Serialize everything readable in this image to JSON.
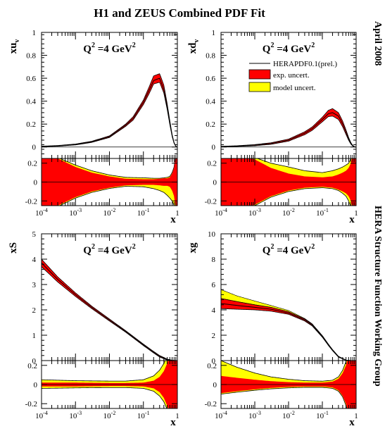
{
  "title": "H1 and ZEUS Combined PDF Fit",
  "side_label_top": "April 2008",
  "side_label_bottom": "HERA Structure Function Working Group",
  "legend": {
    "central": "HERAPDF0.1(prel.)",
    "exp": "exp. uncert.",
    "model": "model uncert."
  },
  "colors": {
    "exp": "#ff0000",
    "model": "#ffff00",
    "line": "#000000"
  },
  "chart_data": [
    {
      "type": "area",
      "ylabel": "xu",
      "ylabel_sub": "v",
      "annotation": "Q",
      "annotation_sup": "2",
      "annotation_rest": " =4 GeV",
      "annotation_sup2": "2",
      "xlabel": "x",
      "xscale": "log",
      "xlim": [
        0.0001,
        1
      ],
      "ylim": [
        -0.1,
        1.0
      ],
      "yticks": [
        "0",
        "0.2",
        "0.4",
        "0.6",
        "0.8",
        "1"
      ],
      "ytick_values": [
        0,
        0.2,
        0.4,
        0.6,
        0.8,
        1
      ],
      "x": [
        0.0001,
        0.0003,
        0.001,
        0.003,
        0.01,
        0.03,
        0.05,
        0.1,
        0.15,
        0.2,
        0.3,
        0.4,
        0.5,
        0.6,
        0.7,
        0.8,
        0.9,
        0.97
      ],
      "central": [
        0.005,
        0.01,
        0.022,
        0.045,
        0.09,
        0.19,
        0.25,
        0.39,
        0.5,
        0.58,
        0.6,
        0.5,
        0.35,
        0.21,
        0.1,
        0.035,
        0.006,
        0.0
      ],
      "exp_up": [
        0.007,
        0.013,
        0.026,
        0.05,
        0.097,
        0.2,
        0.265,
        0.41,
        0.53,
        0.62,
        0.64,
        0.54,
        0.38,
        0.23,
        0.11,
        0.039,
        0.007,
        0.0
      ],
      "exp_down": [
        0.003,
        0.007,
        0.018,
        0.04,
        0.083,
        0.18,
        0.235,
        0.37,
        0.47,
        0.55,
        0.565,
        0.47,
        0.33,
        0.195,
        0.092,
        0.031,
        0.005,
        0.0
      ],
      "ratio_ylim": [
        -0.25,
        0.25
      ],
      "ratio_yticks": [
        "0.2",
        "0",
        "-0.2"
      ],
      "ratio_ytick_values": [
        0.2,
        0,
        -0.2
      ],
      "ratio_x": [
        0.0001,
        0.0003,
        0.001,
        0.003,
        0.01,
        0.03,
        0.1,
        0.2,
        0.3,
        0.4,
        0.5,
        0.6,
        0.7,
        0.8,
        0.9,
        1.0
      ],
      "ratio_exp_up": [
        0.3,
        0.25,
        0.16,
        0.1,
        0.06,
        0.035,
        0.03,
        0.03,
        0.035,
        0.04,
        0.04,
        0.05,
        0.09,
        0.15,
        0.3,
        0.3
      ],
      "ratio_exp_down": [
        -0.3,
        -0.25,
        -0.16,
        -0.1,
        -0.06,
        -0.035,
        -0.03,
        -0.03,
        -0.035,
        -0.04,
        -0.04,
        -0.05,
        -0.09,
        -0.15,
        -0.3,
        -0.3
      ],
      "ratio_model_up": [
        0.3,
        0.26,
        0.18,
        0.12,
        0.075,
        0.05,
        0.045,
        0.04,
        0.04,
        0.045,
        0.05,
        0.06,
        0.1,
        0.16,
        0.3,
        0.3
      ],
      "ratio_model_down": [
        -0.3,
        -0.26,
        -0.17,
        -0.11,
        -0.068,
        -0.045,
        -0.05,
        -0.07,
        -0.09,
        -0.11,
        -0.14,
        -0.17,
        -0.2,
        -0.25,
        -0.3,
        -0.3
      ],
      "xticks": [
        "10-4",
        "10-3",
        "10-2",
        "10-1",
        "1"
      ]
    },
    {
      "type": "area",
      "ylabel": "xd",
      "ylabel_sub": "v",
      "annotation": "Q",
      "annotation_sup": "2",
      "annotation_rest": " =4 GeV",
      "annotation_sup2": "2",
      "xlabel": "x",
      "xscale": "log",
      "xlim": [
        0.0001,
        1
      ],
      "ylim": [
        -0.1,
        1.0
      ],
      "yticks": [
        "0",
        "0.2",
        "0.4",
        "0.6",
        "0.8",
        "1"
      ],
      "ytick_values": [
        0,
        0.2,
        0.4,
        0.6,
        0.8,
        1
      ],
      "x": [
        0.0001,
        0.0003,
        0.001,
        0.003,
        0.01,
        0.03,
        0.05,
        0.1,
        0.15,
        0.2,
        0.3,
        0.4,
        0.5,
        0.6,
        0.7,
        0.8,
        0.9,
        0.97
      ],
      "central": [
        0.004,
        0.008,
        0.016,
        0.03,
        0.06,
        0.12,
        0.16,
        0.24,
        0.29,
        0.3,
        0.27,
        0.2,
        0.13,
        0.07,
        0.03,
        0.01,
        0.002,
        0.0
      ],
      "exp_up": [
        0.006,
        0.011,
        0.021,
        0.037,
        0.069,
        0.133,
        0.175,
        0.26,
        0.32,
        0.335,
        0.3,
        0.225,
        0.15,
        0.083,
        0.037,
        0.013,
        0.003,
        0.0
      ],
      "exp_down": [
        0.002,
        0.005,
        0.011,
        0.023,
        0.051,
        0.107,
        0.145,
        0.22,
        0.265,
        0.27,
        0.24,
        0.175,
        0.11,
        0.058,
        0.024,
        0.007,
        0.001,
        0.0
      ],
      "ratio_ylim": [
        -0.25,
        0.25
      ],
      "ratio_yticks": [
        "0.2",
        "0",
        "-0.2"
      ],
      "ratio_ytick_values": [
        0.2,
        0,
        -0.2
      ],
      "ratio_x": [
        0.0001,
        0.0003,
        0.001,
        0.003,
        0.01,
        0.03,
        0.1,
        0.2,
        0.3,
        0.4,
        0.5,
        0.6,
        0.7,
        0.8,
        0.9,
        1.0
      ],
      "ratio_exp_up": [
        0.3,
        0.3,
        0.24,
        0.15,
        0.09,
        0.06,
        0.05,
        0.06,
        0.08,
        0.1,
        0.12,
        0.15,
        0.2,
        0.3,
        0.3,
        0.3
      ],
      "ratio_exp_down": [
        -0.3,
        -0.3,
        -0.24,
        -0.15,
        -0.09,
        -0.06,
        -0.05,
        -0.06,
        -0.08,
        -0.1,
        -0.12,
        -0.15,
        -0.2,
        -0.3,
        -0.3,
        -0.3
      ],
      "ratio_model_up": [
        0.3,
        0.3,
        0.26,
        0.2,
        0.16,
        0.12,
        0.1,
        0.12,
        0.14,
        0.16,
        0.18,
        0.2,
        0.25,
        0.3,
        0.3,
        0.3
      ],
      "ratio_model_down": [
        -0.3,
        -0.3,
        -0.25,
        -0.16,
        -0.1,
        -0.07,
        -0.06,
        -0.07,
        -0.09,
        -0.12,
        -0.15,
        -0.2,
        -0.27,
        -0.3,
        -0.3,
        -0.3
      ],
      "xticks": [
        "10-4",
        "10-3",
        "10-2",
        "10-1",
        "1"
      ]
    },
    {
      "type": "area",
      "ylabel": "xS",
      "ylabel_sub": "",
      "annotation": "Q",
      "annotation_sup": "2",
      "annotation_rest": " =4 GeV",
      "annotation_sup2": "2",
      "xlabel": "x",
      "xscale": "log",
      "xlim": [
        0.0001,
        1
      ],
      "ylim": [
        0,
        5
      ],
      "yticks": [
        "0",
        "1",
        "2",
        "3",
        "4",
        "5"
      ],
      "ytick_values": [
        0,
        1,
        2,
        3,
        4,
        5
      ],
      "x": [
        0.0001,
        0.0003,
        0.001,
        0.003,
        0.01,
        0.03,
        0.1,
        0.2,
        0.3,
        0.5,
        0.7,
        0.9,
        1.0
      ],
      "central": [
        3.85,
        3.2,
        2.6,
        2.1,
        1.6,
        1.15,
        0.62,
        0.33,
        0.17,
        0.04,
        0.008,
        0.001,
        0.0
      ],
      "exp_up": [
        4.0,
        3.3,
        2.67,
        2.15,
        1.64,
        1.18,
        0.65,
        0.36,
        0.2,
        0.06,
        0.015,
        0.002,
        0.0
      ],
      "exp_down": [
        3.7,
        3.1,
        2.53,
        2.05,
        1.56,
        1.12,
        0.59,
        0.3,
        0.14,
        0.02,
        0.002,
        0.0,
        0.0
      ],
      "ratio_ylim": [
        -0.25,
        0.25
      ],
      "ratio_yticks": [
        "0.2",
        "0",
        "-0.2"
      ],
      "ratio_ytick_values": [
        0.2,
        0,
        -0.2
      ],
      "ratio_x": [
        0.0001,
        0.0003,
        0.001,
        0.003,
        0.01,
        0.03,
        0.1,
        0.2,
        0.3,
        0.4,
        0.5,
        0.6,
        0.7,
        0.8,
        0.9,
        1.0
      ],
      "ratio_exp_up": [
        0.02,
        0.02,
        0.02,
        0.018,
        0.016,
        0.016,
        0.02,
        0.04,
        0.08,
        0.14,
        0.22,
        0.3,
        0.3,
        0.3,
        0.3,
        0.3
      ],
      "ratio_exp_down": [
        -0.02,
        -0.02,
        -0.02,
        -0.018,
        -0.016,
        -0.016,
        -0.02,
        -0.04,
        -0.08,
        -0.14,
        -0.22,
        -0.3,
        -0.3,
        -0.3,
        -0.3,
        -0.3
      ],
      "ratio_model_up": [
        0.05,
        0.045,
        0.04,
        0.038,
        0.036,
        0.036,
        0.05,
        0.09,
        0.15,
        0.22,
        0.3,
        0.3,
        0.3,
        0.3,
        0.3,
        0.3
      ],
      "ratio_model_down": [
        -0.04,
        -0.038,
        -0.035,
        -0.033,
        -0.032,
        -0.032,
        -0.04,
        -0.07,
        -0.12,
        -0.18,
        -0.26,
        -0.3,
        -0.3,
        -0.3,
        -0.3,
        -0.3
      ],
      "xticks": [
        "10-4",
        "10-3",
        "10-2",
        "10-1",
        "1"
      ]
    },
    {
      "type": "area",
      "ylabel": "xg",
      "ylabel_sub": "",
      "annotation": "Q",
      "annotation_sup": "2",
      "annotation_rest": " =4 GeV",
      "annotation_sup2": "2",
      "xlabel": "x",
      "xscale": "log",
      "xlim": [
        0.0001,
        1
      ],
      "ylim": [
        0,
        10
      ],
      "yticks": [
        "0",
        "2",
        "4",
        "6",
        "8",
        "10"
      ],
      "ytick_values": [
        0,
        2,
        4,
        6,
        8,
        10
      ],
      "x": [
        0.0001,
        0.0003,
        0.001,
        0.003,
        0.01,
        0.03,
        0.05,
        0.1,
        0.15,
        0.2,
        0.3,
        0.5,
        0.7,
        1.0
      ],
      "central": [
        4.5,
        4.35,
        4.2,
        4.05,
        3.75,
        3.2,
        2.8,
        1.9,
        1.25,
        0.82,
        0.3,
        0.03,
        0.002,
        0.0
      ],
      "exp_up": [
        4.9,
        4.65,
        4.4,
        4.2,
        3.85,
        3.28,
        2.87,
        1.96,
        1.3,
        0.86,
        0.33,
        0.04,
        0.003,
        0.0
      ],
      "exp_down": [
        4.1,
        4.05,
        4.0,
        3.9,
        3.65,
        3.12,
        2.73,
        1.84,
        1.2,
        0.78,
        0.27,
        0.02,
        0.001,
        0.0
      ],
      "model_up": [
        5.6,
        5.1,
        4.7,
        4.35,
        3.95,
        3.32,
        2.9,
        1.97,
        1.31,
        0.87,
        0.34,
        0.045,
        0.004,
        0.0
      ],
      "ratio_ylim": [
        -0.25,
        0.25
      ],
      "ratio_yticks": [
        "0.2",
        "0",
        "-0.2"
      ],
      "ratio_ytick_values": [
        0.2,
        0,
        -0.2
      ],
      "ratio_x": [
        0.0001,
        0.0003,
        0.001,
        0.003,
        0.01,
        0.03,
        0.1,
        0.2,
        0.3,
        0.4,
        0.5,
        0.6,
        0.7,
        0.8,
        0.9,
        1.0
      ],
      "ratio_exp_up": [
        0.09,
        0.07,
        0.05,
        0.035,
        0.025,
        0.02,
        0.02,
        0.03,
        0.06,
        0.12,
        0.2,
        0.3,
        0.3,
        0.3,
        0.3,
        0.3
      ],
      "ratio_exp_down": [
        -0.09,
        -0.07,
        -0.05,
        -0.035,
        -0.025,
        -0.02,
        -0.02,
        -0.03,
        -0.06,
        -0.12,
        -0.2,
        -0.3,
        -0.3,
        -0.3,
        -0.3,
        -0.3
      ],
      "ratio_model_up": [
        0.25,
        0.18,
        0.12,
        0.08,
        0.055,
        0.04,
        0.035,
        0.045,
        0.08,
        0.15,
        0.24,
        0.3,
        0.3,
        0.3,
        0.3,
        0.3
      ],
      "ratio_model_down": [
        -0.1,
        -0.08,
        -0.06,
        -0.045,
        -0.035,
        -0.03,
        -0.03,
        -0.04,
        -0.07,
        -0.13,
        -0.22,
        -0.3,
        -0.3,
        -0.3,
        -0.3,
        -0.3
      ],
      "xticks": [
        "10-4",
        "10-3",
        "10-2",
        "10-1",
        "1"
      ]
    }
  ]
}
